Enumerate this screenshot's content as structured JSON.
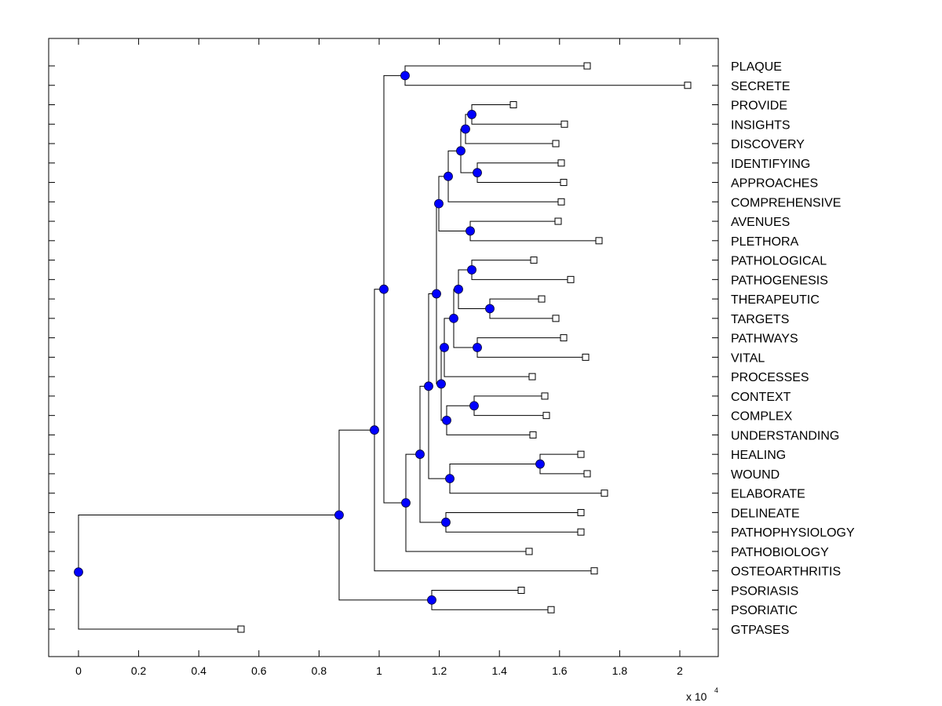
{
  "chart_data": {
    "type": "dendrogram",
    "title": "",
    "xlabel": "",
    "ylabel": "",
    "x_scale_multiplier_label": "x 10",
    "x_scale_multiplier_exponent": "4",
    "xlim": [
      -1000,
      21300
    ],
    "x_ticks": [
      0,
      2000,
      4000,
      6000,
      8000,
      10000,
      12000,
      14000,
      16000,
      18000,
      20000
    ],
    "x_tick_labels": [
      "0",
      "0.2",
      "0.4",
      "0.6",
      "0.8",
      "1",
      "1.2",
      "1.4",
      "1.6",
      "1.8",
      "2"
    ],
    "grid": false,
    "orientation": "root-left, leaves-right",
    "colors": {
      "internal_node": "#0000ff",
      "leaf_marker": "#ffffff",
      "line": "#000000"
    },
    "leaves": [
      {
        "id": "L0",
        "label": "PLAQUE",
        "x": 16919
      },
      {
        "id": "L1",
        "label": "SECRETE",
        "x": 20261
      },
      {
        "id": "L2",
        "label": "PROVIDE",
        "x": 14465
      },
      {
        "id": "L3",
        "label": "INSIGHTS",
        "x": 16162
      },
      {
        "id": "L4",
        "label": "DISCOVERY",
        "x": 15875
      },
      {
        "id": "L5",
        "label": "IDENTIFYING",
        "x": 16057
      },
      {
        "id": "L6",
        "label": "APPROACHES",
        "x": 16136
      },
      {
        "id": "L7",
        "label": "COMPREHENSIVE",
        "x": 16057
      },
      {
        "id": "L8",
        "label": "AVENUES",
        "x": 15953
      },
      {
        "id": "L9",
        "label": "PLETHORA",
        "x": 17311
      },
      {
        "id": "L10",
        "label": "PATHOLOGICAL",
        "x": 15144
      },
      {
        "id": "L11",
        "label": "PATHOGENESIS",
        "x": 16371
      },
      {
        "id": "L12",
        "label": "THERAPEUTIC",
        "x": 15405
      },
      {
        "id": "L13",
        "label": "TARGETS",
        "x": 15875
      },
      {
        "id": "L14",
        "label": "PATHWAYS",
        "x": 16136
      },
      {
        "id": "L15",
        "label": "VITAL",
        "x": 16867
      },
      {
        "id": "L16",
        "label": "PROCESSES",
        "x": 15091
      },
      {
        "id": "L17",
        "label": "CONTEXT",
        "x": 15509
      },
      {
        "id": "L18",
        "label": "COMPLEX",
        "x": 15561
      },
      {
        "id": "L19",
        "label": "UNDERSTANDING",
        "x": 15117
      },
      {
        "id": "L20",
        "label": "HEALING",
        "x": 16710
      },
      {
        "id": "L21",
        "label": "WOUND",
        "x": 16919
      },
      {
        "id": "L22",
        "label": "ELABORATE",
        "x": 17493
      },
      {
        "id": "L23",
        "label": "DELINEATE",
        "x": 16710
      },
      {
        "id": "L24",
        "label": "PATHOPHYSIOLOGY",
        "x": 16710
      },
      {
        "id": "L25",
        "label": "PATHOBIOLOGY",
        "x": 14987
      },
      {
        "id": "L26",
        "label": "OSTEOARTHRITIS",
        "x": 17154
      },
      {
        "id": "L27",
        "label": "PSORIASIS",
        "x": 14726
      },
      {
        "id": "L28",
        "label": "PSORIATIC",
        "x": 15718
      },
      {
        "id": "L29",
        "label": "GTPASES",
        "x": 5405
      }
    ],
    "internal_nodes": [
      {
        "id": "N_plaque_secrete",
        "x": 10862,
        "children": [
          "L0",
          "L1"
        ]
      },
      {
        "id": "N_provide_insights",
        "x": 13081,
        "children": [
          "L2",
          "L3"
        ]
      },
      {
        "id": "N_pi_discovery",
        "x": 12872,
        "children": [
          "N_provide_insights",
          "L4"
        ]
      },
      {
        "id": "N_ident_appr",
        "x": 13264,
        "children": [
          "L5",
          "L6"
        ]
      },
      {
        "id": "N_upper_a",
        "x": 12715,
        "children": [
          "N_pi_discovery",
          "N_ident_appr"
        ]
      },
      {
        "id": "N_upper_b",
        "x": 12298,
        "children": [
          "N_upper_a",
          "L7"
        ]
      },
      {
        "id": "N_aven_pleth",
        "x": 13029,
        "children": [
          "L8",
          "L9"
        ]
      },
      {
        "id": "N_upper",
        "x": 11984,
        "children": [
          "N_upper_b",
          "N_aven_pleth"
        ]
      },
      {
        "id": "N_patho_pair",
        "x": 13081,
        "children": [
          "L10",
          "L11"
        ]
      },
      {
        "id": "N_ther_targ",
        "x": 13681,
        "children": [
          "L12",
          "L13"
        ]
      },
      {
        "id": "N_mid_a",
        "x": 12637,
        "children": [
          "N_patho_pair",
          "N_ther_targ"
        ]
      },
      {
        "id": "N_path_vital",
        "x": 13264,
        "children": [
          "L14",
          "L15"
        ]
      },
      {
        "id": "N_mid_b",
        "x": 12480,
        "children": [
          "N_mid_a",
          "N_path_vital"
        ]
      },
      {
        "id": "N_mid_c",
        "x": 12167,
        "children": [
          "N_mid_b",
          "L16"
        ]
      },
      {
        "id": "N_ctx_cplx",
        "x": 13159,
        "children": [
          "L17",
          "L18"
        ]
      },
      {
        "id": "N_ctx_und",
        "x": 12245,
        "children": [
          "N_ctx_cplx",
          "L19"
        ]
      },
      {
        "id": "N_mid",
        "x": 12063,
        "children": [
          "N_mid_c",
          "N_ctx_und"
        ]
      },
      {
        "id": "N_upper_mid",
        "x": 11906,
        "children": [
          "N_upper",
          "N_mid"
        ]
      },
      {
        "id": "N_heal_wound",
        "x": 15352,
        "children": [
          "L20",
          "L21"
        ]
      },
      {
        "id": "N_hw_elab",
        "x": 12350,
        "children": [
          "N_heal_wound",
          "L22"
        ]
      },
      {
        "id": "N_core",
        "x": 11645,
        "children": [
          "N_upper_mid",
          "N_hw_elab"
        ]
      },
      {
        "id": "N_delin_pphys",
        "x": 12219,
        "children": [
          "L23",
          "L24"
        ]
      },
      {
        "id": "N_core_b",
        "x": 11358,
        "children": [
          "N_core",
          "N_delin_pphys"
        ]
      },
      {
        "id": "N_core_c",
        "x": 10888,
        "children": [
          "N_core_b",
          "L25"
        ]
      },
      {
        "id": "N_big",
        "x": 10157,
        "children": [
          "N_plaque_secrete",
          "N_core_c"
        ]
      },
      {
        "id": "N_big_osteo",
        "x": 9843,
        "children": [
          "N_big",
          "L26"
        ]
      },
      {
        "id": "N_psor",
        "x": 11749,
        "children": [
          "L27",
          "L28"
        ]
      },
      {
        "id": "N_main",
        "x": 8668,
        "children": [
          "N_big_osteo",
          "N_psor"
        ]
      },
      {
        "id": "N_root",
        "x": 0,
        "children": [
          "N_main",
          "L29"
        ]
      }
    ]
  }
}
